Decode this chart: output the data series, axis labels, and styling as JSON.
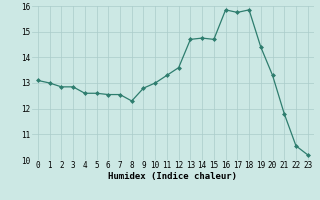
{
  "x": [
    0,
    1,
    2,
    3,
    4,
    5,
    6,
    7,
    8,
    9,
    10,
    11,
    12,
    13,
    14,
    15,
    16,
    17,
    18,
    19,
    20,
    21,
    22,
    23
  ],
  "y": [
    13.1,
    13.0,
    12.85,
    12.85,
    12.6,
    12.6,
    12.55,
    12.55,
    12.3,
    12.8,
    13.0,
    13.3,
    13.6,
    14.7,
    14.75,
    14.7,
    15.85,
    15.75,
    15.85,
    14.4,
    13.3,
    11.8,
    10.55,
    10.2
  ],
  "line_color": "#2e7d6e",
  "marker": "D",
  "marker_size": 2,
  "bg_color": "#cce8e4",
  "grid_color": "#aaccca",
  "xlabel": "Humidex (Indice chaleur)",
  "ylim": [
    10,
    16
  ],
  "xlim": [
    -0.5,
    23.5
  ],
  "yticks": [
    10,
    11,
    12,
    13,
    14,
    15,
    16
  ],
  "xticks": [
    0,
    1,
    2,
    3,
    4,
    5,
    6,
    7,
    8,
    9,
    10,
    11,
    12,
    13,
    14,
    15,
    16,
    17,
    18,
    19,
    20,
    21,
    22,
    23
  ],
  "xlabel_fontsize": 6.5,
  "tick_fontsize": 5.5
}
